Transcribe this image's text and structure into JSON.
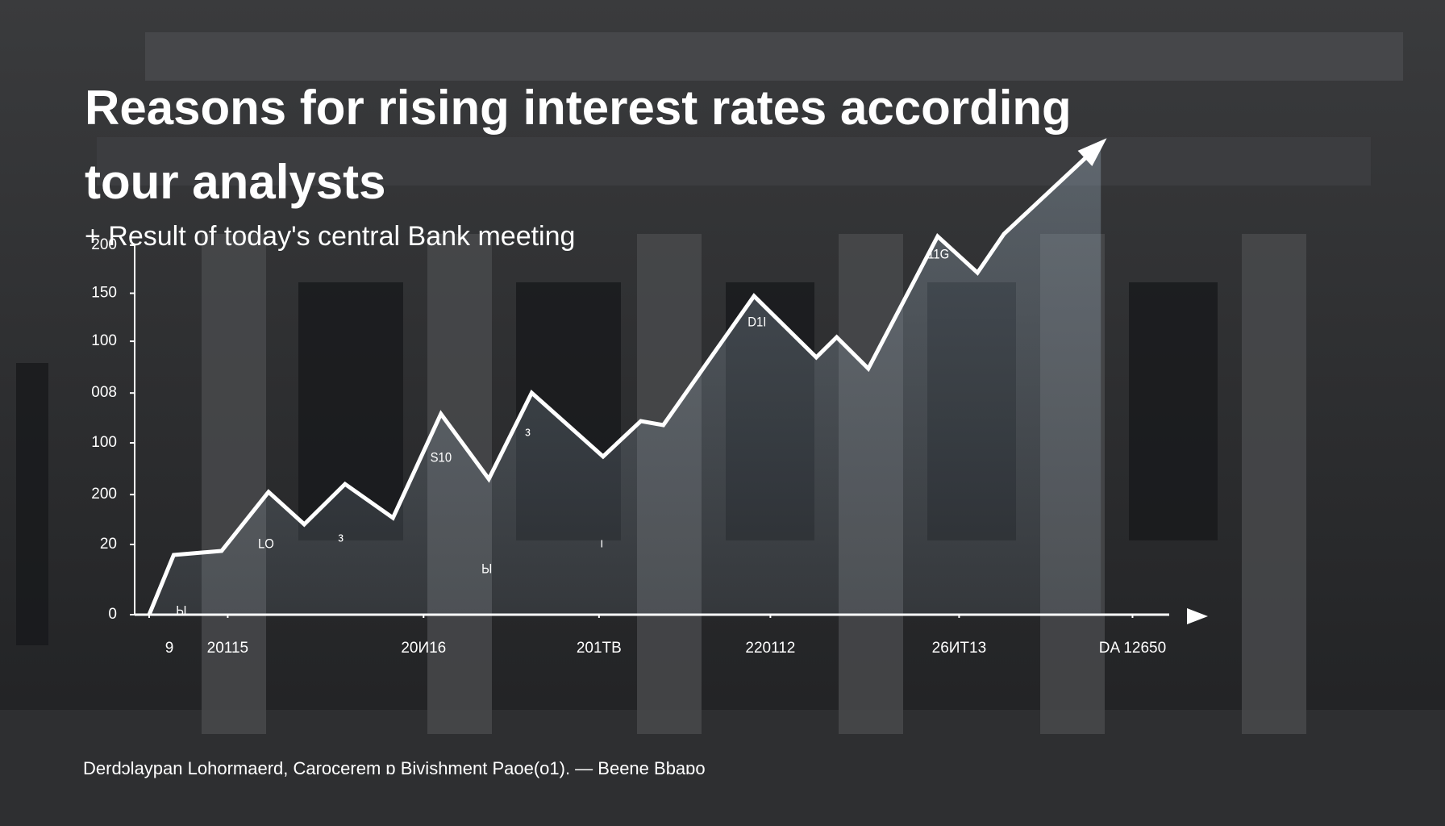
{
  "chart_data": {
    "type": "line",
    "title": "Reasons for rising interest rates according tour analysts",
    "subtitle": "+ Result of today's central Bank meeting",
    "source": "Derdɔlaypan Lohormaerd, Carocerem ɒ Bivishment Paoe(o1). — Beene Bbaɒo",
    "x": [
      0,
      2.4,
      7.1,
      11.7,
      15.2,
      19.2,
      23.9,
      28.6,
      33.3,
      37.5,
      44.5,
      48.2,
      50.4,
      59.3,
      65.4,
      67.4,
      70.5,
      77.3,
      81.2,
      83.8,
      93.3
    ],
    "values": [
      0,
      32.3,
      34.5,
      66.4,
      48.9,
      70.7,
      52.4,
      108.7,
      73.4,
      120.1,
      85.6,
      104.8,
      102.6,
      172.5,
      139.3,
      150.2,
      133.2,
      204.8,
      185.1,
      206.1,
      255
    ],
    "color": "#ffffff",
    "xlim": [
      0,
      100
    ],
    "xticks": [
      {
        "value": 0,
        "label": "9"
      },
      {
        "value": 7.7,
        "label": "20115"
      },
      {
        "value": 26.9,
        "label": "20И16"
      },
      {
        "value": 44.1,
        "label": "201TB"
      },
      {
        "value": 60.9,
        "label": "220112"
      },
      {
        "value": 79.4,
        "label": "26ИТ13"
      },
      {
        "value": 96.4,
        "label": "DA  12650"
      }
    ],
    "ylim": [
      0,
      260
    ],
    "yticks": [
      0,
      {
        "value": 38,
        "label": "20"
      },
      {
        "value": 65,
        "label": "200"
      },
      {
        "value": 93,
        "label": "100"
      },
      {
        "value": 120,
        "label": "008"
      },
      {
        "value": 148,
        "label": "100"
      },
      {
        "value": 174,
        "label": "150"
      },
      {
        "value": 200,
        "label": "200"
      }
    ],
    "annotations": [
      "Ы",
      "LO",
      "з",
      "S10",
      "Ы",
      "з",
      "ı",
      "D1I",
      "11G"
    ]
  }
}
